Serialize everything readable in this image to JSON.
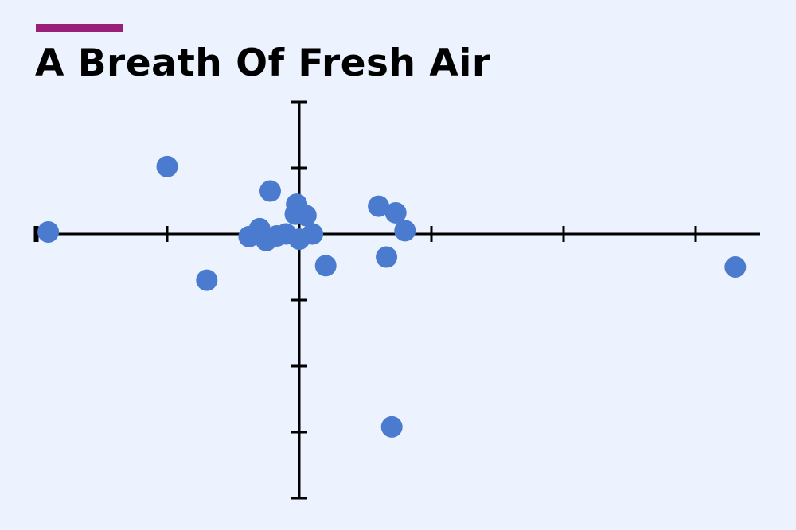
{
  "colors": {
    "background": "#ecf3fe",
    "accent": "#9a1f78",
    "point": "#4a7bcf",
    "axis": "#000000"
  },
  "title": "A Breath Of Fresh Air",
  "chart_data": {
    "type": "scatter",
    "title": "A Breath Of Fresh Air",
    "xlabel": "",
    "ylabel": "",
    "xlim": [
      -2,
      3.5
    ],
    "ylim": [
      -4,
      2
    ],
    "xticks": [
      -2,
      -1,
      1,
      2,
      3
    ],
    "yticks": [
      -4,
      -3,
      -2,
      -1,
      1,
      2
    ],
    "grid": false,
    "axes_cross_at_origin": true,
    "series": [
      {
        "points": [
          [
            -1.9,
            0.03
          ],
          [
            -1.0,
            1.02
          ],
          [
            -0.7,
            -0.7
          ],
          [
            -0.22,
            0.65
          ],
          [
            -0.3,
            0.08
          ],
          [
            -0.38,
            -0.04
          ],
          [
            -0.25,
            -0.1
          ],
          [
            -0.17,
            -0.03
          ],
          [
            -0.1,
            0.0
          ],
          [
            -0.02,
            0.45
          ],
          [
            -0.03,
            0.3
          ],
          [
            0.05,
            0.28
          ],
          [
            0.0,
            -0.08
          ],
          [
            0.1,
            0.0
          ],
          [
            0.2,
            -0.48
          ],
          [
            0.6,
            0.42
          ],
          [
            0.73,
            0.32
          ],
          [
            0.8,
            0.05
          ],
          [
            0.66,
            -0.35
          ],
          [
            0.7,
            -2.92
          ],
          [
            3.3,
            -0.5
          ]
        ]
      }
    ]
  }
}
